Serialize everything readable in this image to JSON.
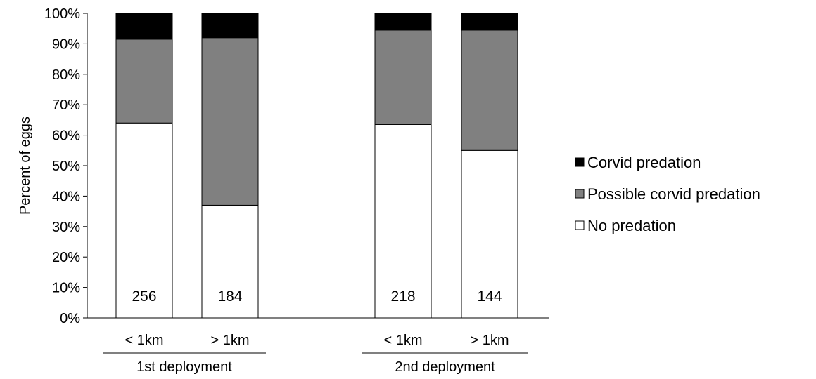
{
  "chart_data": {
    "type": "bar",
    "stacked": true,
    "percent_stacked": true,
    "ylabel": "Percent of eggs",
    "xlabel": "",
    "ylim": [
      0,
      100
    ],
    "y_tick_labels": [
      "0%",
      "10%",
      "20%",
      "30%",
      "40%",
      "50%",
      "60%",
      "70%",
      "80%",
      "90%",
      "100%"
    ],
    "grid": false,
    "legend_position": "right",
    "groups": [
      {
        "label": "1st deployment",
        "categories": [
          "< 1km",
          "> 1km"
        ]
      },
      {
        "label": "2nd deployment",
        "categories": [
          "< 1km",
          "> 1km"
        ]
      }
    ],
    "categories": [
      "< 1km",
      "> 1km",
      "< 1km",
      "> 1km"
    ],
    "sample_sizes": [
      "256",
      "184",
      "218",
      "144"
    ],
    "series": [
      {
        "name": "No predation",
        "color": "#ffffff",
        "values": [
          64,
          37,
          63.5,
          55
        ]
      },
      {
        "name": "Possible corvid predation",
        "color": "#808080",
        "values": [
          27.5,
          55,
          31,
          39.5
        ]
      },
      {
        "name": "Corvid predation",
        "color": "#000000",
        "values": [
          8.5,
          8,
          5.5,
          5.5
        ]
      }
    ],
    "legend_order": [
      "Corvid predation",
      "Possible corvid predation",
      "No predation"
    ]
  }
}
